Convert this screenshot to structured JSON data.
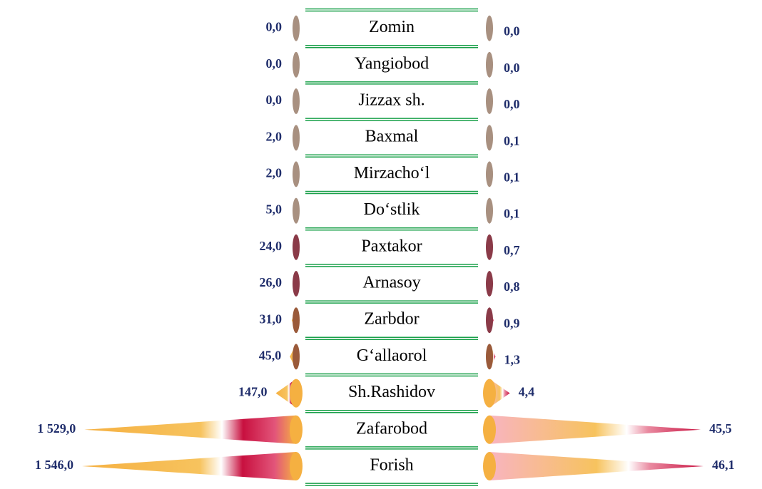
{
  "chart_data": {
    "type": "butterfly-cone",
    "categories": [
      "Zomin",
      "Yangiobod",
      "Jizzax sh.",
      "Baxmal",
      "Mirzacho‘l",
      "Do‘stlik",
      "Paxtakor",
      "Arnasoy",
      "Zarbdor",
      "G‘allaorol",
      "Sh.Rashidov",
      "Zafarobod",
      "Forish"
    ],
    "series": [
      {
        "color": "#f5b041",
        "values": [
          0,
          0,
          0,
          2,
          2,
          5,
          24,
          26,
          31,
          45,
          147,
          1529,
          1546
        ],
        "value_labels": [
          "0,0",
          "0,0",
          "0,0",
          "2,0",
          "2,0",
          "5,0",
          "24,0",
          "26,0",
          "31,0",
          "45,0",
          "147,0",
          "1 529,0",
          "1 546,0"
        ]
      },
      {
        "color": "#f5b041",
        "values": [
          0,
          0,
          0,
          0.1,
          0.1,
          0.1,
          0.7,
          0.8,
          0.9,
          1.3,
          4.4,
          45.5,
          46.1
        ],
        "value_labels": [
          "0,0",
          "0,0",
          "0,0",
          "0,1",
          "0,1",
          "0,1",
          "0,7",
          "0,8",
          "0,9",
          "1,3",
          "4,4",
          "45,5",
          "46,1"
        ]
      }
    ]
  }
}
